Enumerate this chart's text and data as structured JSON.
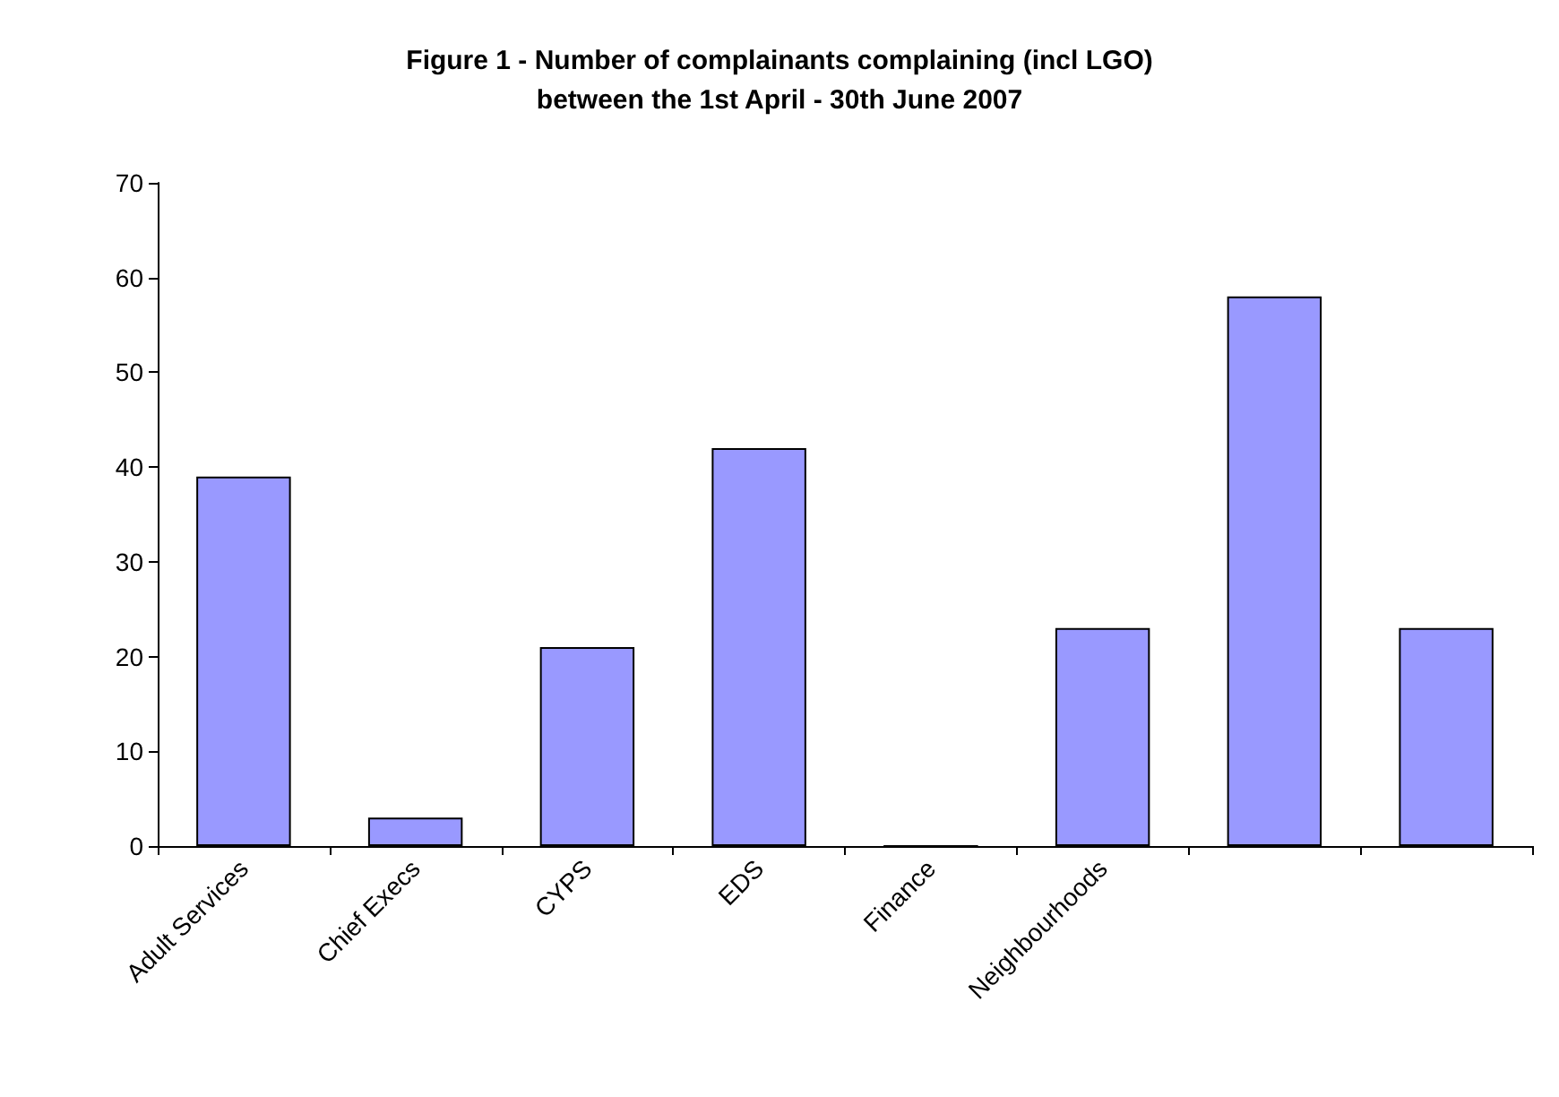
{
  "chart_data": {
    "type": "bar",
    "title": "Figure 1 - Number of complainants complaining (incl LGO)\nbetween the 1st April - 30th June 2007",
    "categories": [
      "Adult Services",
      "Chief Execs",
      "CYPS",
      "EDS",
      "Finance",
      "Neighbourhoods",
      null,
      null
    ],
    "values": [
      39,
      3,
      21,
      42,
      0,
      23,
      58,
      23
    ],
    "color": "#9999ff",
    "ylim": [
      0,
      70
    ],
    "yticks": [
      0,
      10,
      20,
      30,
      40,
      50,
      60,
      70
    ],
    "grid": false
  }
}
